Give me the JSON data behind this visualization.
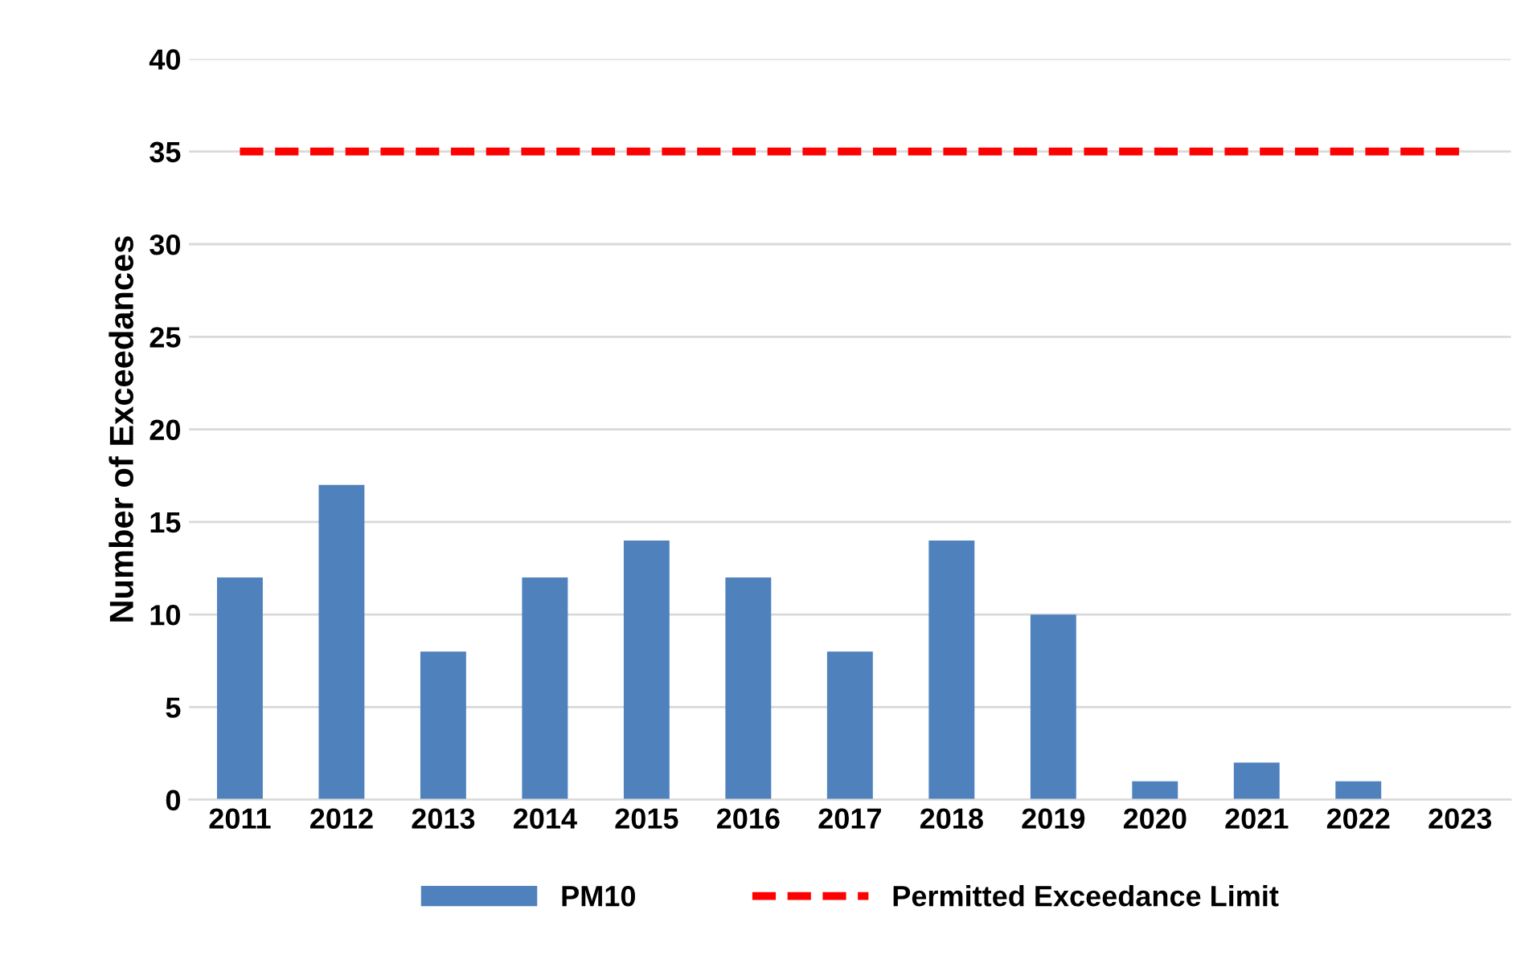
{
  "chart_data": {
    "type": "bar",
    "ylabel": "Number of Exceedances",
    "categories": [
      "2011",
      "2012",
      "2013",
      "2014",
      "2015",
      "2016",
      "2017",
      "2018",
      "2019",
      "2020",
      "2021",
      "2022",
      "2023"
    ],
    "series": [
      {
        "name": "PM10",
        "color": "#4f81bd",
        "values": [
          12,
          17,
          8,
          12,
          14,
          12,
          8,
          14,
          10,
          1,
          2,
          1,
          0
        ]
      },
      {
        "name": "Permitted Exceedance Limit",
        "type": "line",
        "color": "#ff0000",
        "line_style": "dashed",
        "values": [
          35,
          35,
          35,
          35,
          35,
          35,
          35,
          35,
          35,
          35,
          35,
          35,
          35
        ]
      }
    ],
    "ylim": [
      0,
      40
    ],
    "yticks": [
      0,
      5,
      10,
      15,
      20,
      25,
      30,
      35,
      40
    ],
    "grid": "y",
    "legend": "bottom"
  }
}
